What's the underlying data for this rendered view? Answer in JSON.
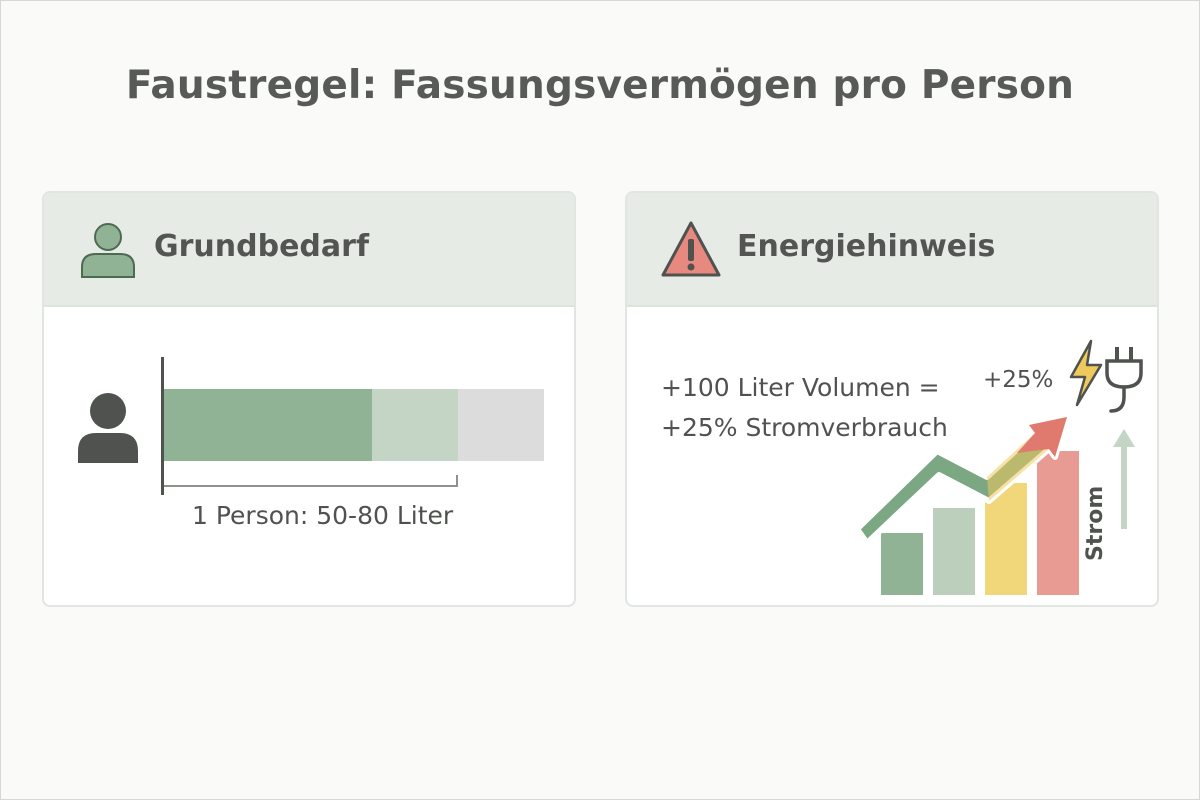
{
  "title": "Faustregel: Fassungsvermögen pro Person",
  "card_basic": {
    "heading": "Grundbedarf",
    "icon": "person-icon",
    "requirement_label": "1 Person: 50-80 Liter",
    "bar_segments": [
      {
        "role": "min",
        "color": "#8fb394"
      },
      {
        "role": "range",
        "color": "#c5d5c5"
      },
      {
        "role": "rest",
        "color": "#dcdcdc"
      }
    ]
  },
  "card_energy": {
    "heading": "Energiehinweis",
    "icon": "warning-icon",
    "note_line1": "+100 Liter Volumen =",
    "note_line2": "+25% Stromverbrauch",
    "percent_label": "+25%",
    "axis_label": "Strom",
    "bar_colors": [
      "#8fb394",
      "#bccfbc",
      "#f2d77a",
      "#e89b92"
    ],
    "arrow_colors": [
      "#7ba782",
      "#f0c95c",
      "#e07a6e"
    ],
    "lightning_icon": "lightning-icon",
    "plug_icon": "plug-icon"
  },
  "colors": {
    "card_header_bg": "#e6ebe6",
    "person_green": "#8fb394",
    "person_dark": "#4f524f",
    "warning_red": "#e8897f"
  }
}
